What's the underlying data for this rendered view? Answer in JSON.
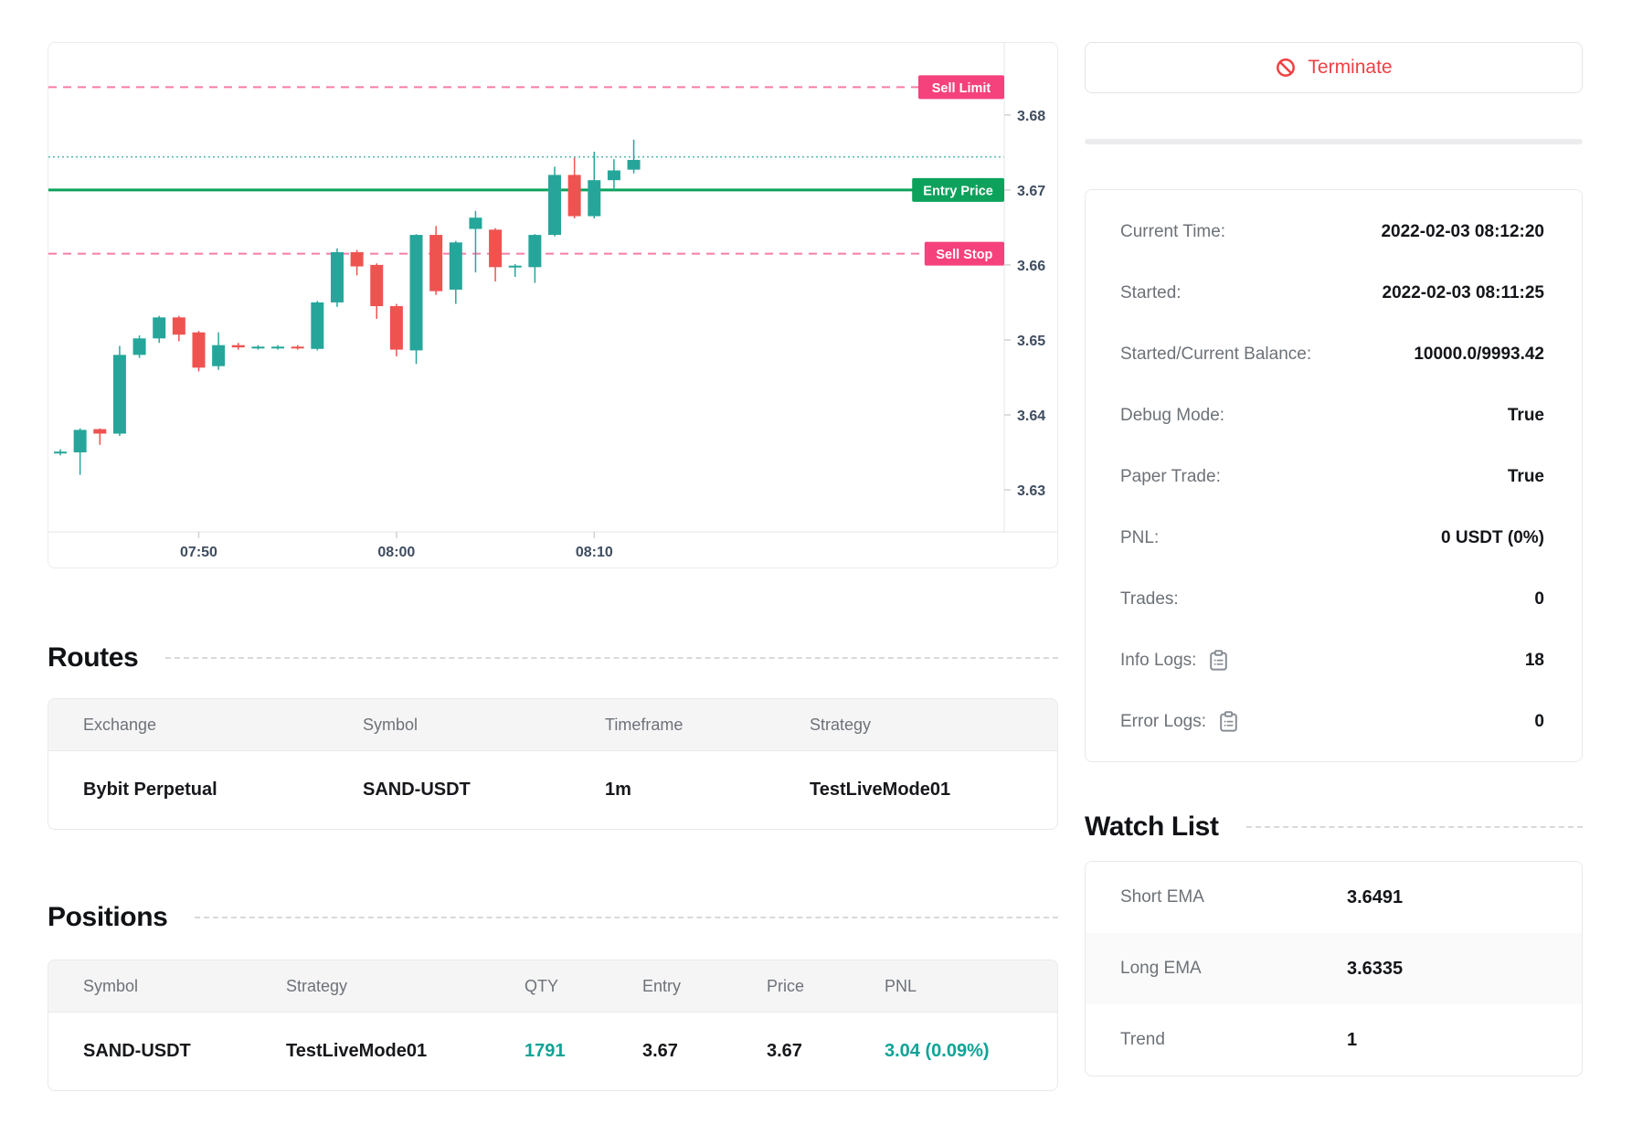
{
  "terminate": {
    "label": "Terminate"
  },
  "info": {
    "rows": [
      {
        "label": "Current Time:",
        "value": "2022-02-03 08:12:20"
      },
      {
        "label": "Started:",
        "value": "2022-02-03 08:11:25"
      },
      {
        "label": "Started/Current Balance:",
        "value": "10000.0/9993.42"
      },
      {
        "label": "Debug Mode:",
        "value": "True"
      },
      {
        "label": "Paper Trade:",
        "value": "True"
      },
      {
        "label": "PNL:",
        "value": "0 USDT (0%)"
      },
      {
        "label": "Trades:",
        "value": "0"
      },
      {
        "label": "Info Logs:",
        "value": "18",
        "icon": "clipboard"
      },
      {
        "label": "Error Logs:",
        "value": "0",
        "icon": "clipboard"
      }
    ]
  },
  "watch_list": {
    "title": "Watch List",
    "rows": [
      {
        "label": "Short EMA",
        "value": "3.6491"
      },
      {
        "label": "Long EMA",
        "value": "3.6335"
      },
      {
        "label": "Trend",
        "value": "1"
      }
    ]
  },
  "routes": {
    "title": "Routes",
    "headers": [
      "Exchange",
      "Symbol",
      "Timeframe",
      "Strategy"
    ],
    "rows": [
      {
        "exchange": "Bybit Perpetual",
        "symbol": "SAND-USDT",
        "timeframe": "1m",
        "strategy": "TestLiveMode01"
      }
    ]
  },
  "positions": {
    "title": "Positions",
    "headers": [
      "Symbol",
      "Strategy",
      "QTY",
      "Entry",
      "Price",
      "PNL"
    ],
    "rows": [
      {
        "symbol": "SAND-USDT",
        "strategy": "TestLiveMode01",
        "qty": "1791",
        "entry": "3.67",
        "price": "3.67",
        "pnl": "3.04 (0.09%)"
      }
    ]
  },
  "chart_data": {
    "type": "candlestick",
    "timeframe": "1m",
    "symbol": "SAND-USDT",
    "y_range": [
      3.6244,
      3.6896
    ],
    "y_ticks": [
      "3.68",
      "3.67",
      "3.66",
      "3.65",
      "3.64",
      "3.63"
    ],
    "x_ticks": [
      {
        "label": "07:50",
        "i": 7
      },
      {
        "label": "08:00",
        "i": 17
      },
      {
        "label": "08:10",
        "i": 27
      }
    ],
    "price_lines": [
      {
        "label": "Sell Limit",
        "price": 3.6837,
        "style": "dashed",
        "line_color": "#f87ca6",
        "badge_color": "#f5417c"
      },
      {
        "label": "Entry Price",
        "price": 3.67,
        "style": "solid",
        "line_color": "#0ca25c",
        "badge_color": "#0ca25c"
      },
      {
        "label": "Sell Stop",
        "price": 3.6615,
        "style": "dashed",
        "line_color": "#f87ca6",
        "badge_color": "#f5417c"
      },
      {
        "label": "",
        "price": 3.6744,
        "style": "dotted",
        "line_color": "#5cbbb1",
        "badge_color": ""
      }
    ],
    "colors": {
      "up": "#26a69a",
      "down": "#ef5350",
      "axis_text": "#3f4d60",
      "axis_line": "#e3e4e6",
      "tick": "#cfd2d6"
    },
    "candles": [
      {
        "t": "07:43",
        "o": 3.635,
        "h": 3.6354,
        "l": 3.6346,
        "c": 3.6351
      },
      {
        "t": "07:44",
        "o": 3.635,
        "h": 3.6382,
        "l": 3.632,
        "c": 3.638
      },
      {
        "t": "07:45",
        "o": 3.6381,
        "h": 3.6382,
        "l": 3.636,
        "c": 3.6375
      },
      {
        "t": "07:46",
        "o": 3.6375,
        "h": 3.6492,
        "l": 3.6372,
        "c": 3.648
      },
      {
        "t": "07:47",
        "o": 3.648,
        "h": 3.6506,
        "l": 3.6476,
        "c": 3.6502
      },
      {
        "t": "07:48",
        "o": 3.6502,
        "h": 3.6532,
        "l": 3.6496,
        "c": 3.653
      },
      {
        "t": "07:49",
        "o": 3.653,
        "h": 3.6532,
        "l": 3.6498,
        "c": 3.6507
      },
      {
        "t": "07:50",
        "o": 3.651,
        "h": 3.6512,
        "l": 3.6458,
        "c": 3.6463
      },
      {
        "t": "07:51",
        "o": 3.6465,
        "h": 3.651,
        "l": 3.646,
        "c": 3.6493
      },
      {
        "t": "07:52",
        "o": 3.6493,
        "h": 3.6496,
        "l": 3.6487,
        "c": 3.649
      },
      {
        "t": "07:53",
        "o": 3.649,
        "h": 3.6493,
        "l": 3.6487,
        "c": 3.6491
      },
      {
        "t": "07:54",
        "o": 3.6491,
        "h": 3.6493,
        "l": 3.6487,
        "c": 3.6491
      },
      {
        "t": "07:55",
        "o": 3.6491,
        "h": 3.6493,
        "l": 3.6487,
        "c": 3.649
      },
      {
        "t": "07:56",
        "o": 3.6488,
        "h": 3.6552,
        "l": 3.6486,
        "c": 3.655
      },
      {
        "t": "07:57",
        "o": 3.655,
        "h": 3.6622,
        "l": 3.6544,
        "c": 3.6617
      },
      {
        "t": "07:58",
        "o": 3.6617,
        "h": 3.662,
        "l": 3.6586,
        "c": 3.6598
      },
      {
        "t": "07:59",
        "o": 3.66,
        "h": 3.6602,
        "l": 3.6528,
        "c": 3.6545
      },
      {
        "t": "08:00",
        "o": 3.6545,
        "h": 3.6548,
        "l": 3.6478,
        "c": 3.6487
      },
      {
        "t": "08:01",
        "o": 3.6486,
        "h": 3.6641,
        "l": 3.6468,
        "c": 3.664
      },
      {
        "t": "08:02",
        "o": 3.664,
        "h": 3.6652,
        "l": 3.656,
        "c": 3.6565
      },
      {
        "t": "08:03",
        "o": 3.6567,
        "h": 3.6632,
        "l": 3.6548,
        "c": 3.663
      },
      {
        "t": "08:04",
        "o": 3.6648,
        "h": 3.6672,
        "l": 3.659,
        "c": 3.6663
      },
      {
        "t": "08:05",
        "o": 3.6647,
        "h": 3.6649,
        "l": 3.6578,
        "c": 3.6597
      },
      {
        "t": "08:06",
        "o": 3.6598,
        "h": 3.6601,
        "l": 3.6584,
        "c": 3.6599
      },
      {
        "t": "08:07",
        "o": 3.6597,
        "h": 3.6641,
        "l": 3.6576,
        "c": 3.664
      },
      {
        "t": "08:08",
        "o": 3.664,
        "h": 3.6731,
        "l": 3.6638,
        "c": 3.672
      },
      {
        "t": "08:09",
        "o": 3.672,
        "h": 3.6743,
        "l": 3.6662,
        "c": 3.6665
      },
      {
        "t": "08:10",
        "o": 3.6665,
        "h": 3.6751,
        "l": 3.6662,
        "c": 3.6713
      },
      {
        "t": "08:11",
        "o": 3.6713,
        "h": 3.6741,
        "l": 3.67,
        "c": 3.6726
      },
      {
        "t": "08:12",
        "o": 3.6727,
        "h": 3.6767,
        "l": 3.6722,
        "c": 3.674
      }
    ]
  }
}
